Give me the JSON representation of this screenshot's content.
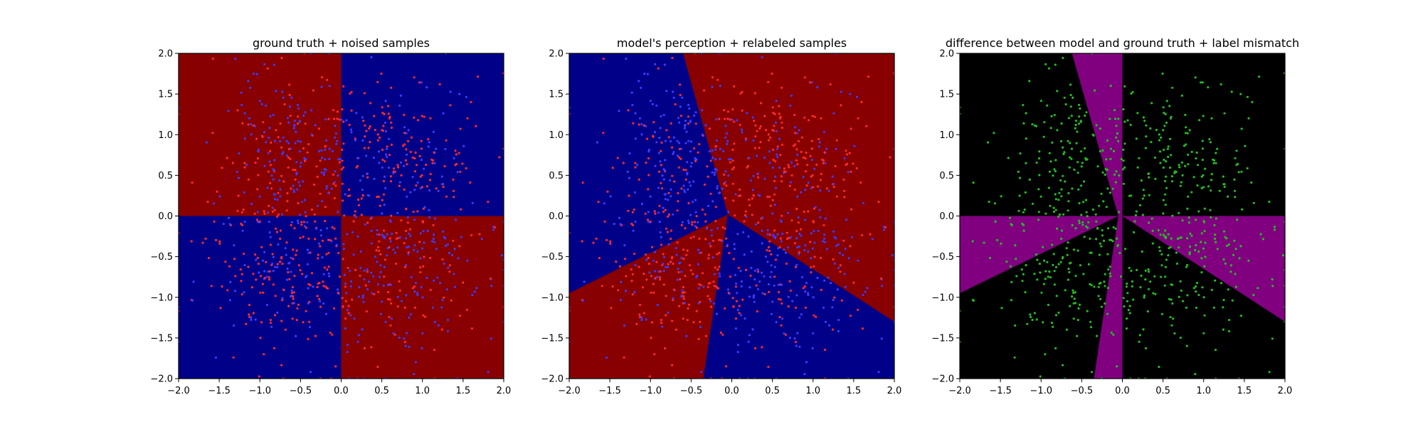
{
  "chart_data": [
    {
      "type": "scatter",
      "title": "ground truth + noised samples",
      "xlabel": "",
      "ylabel": "",
      "xlim": [
        -2.0,
        2.0
      ],
      "ylim": [
        -2.0,
        2.0
      ],
      "xticks": [
        "−2.0",
        "−1.5",
        "−1.0",
        "−0.5",
        "0.0",
        "0.5",
        "1.0",
        "1.5",
        "2.0"
      ],
      "yticks": [
        "−2.0",
        "−1.5",
        "−1.0",
        "−0.5",
        "0.0",
        "0.5",
        "1.0",
        "1.5",
        "2.0"
      ],
      "background": "ground-truth-quadrants",
      "region_colors": {
        "class_a": "#880000",
        "class_b": "#000088"
      },
      "point_colors": [
        "#ff2a2a",
        "#3b3bff"
      ],
      "point_count": 1000,
      "grid": false
    },
    {
      "type": "scatter",
      "title": "model's perception + relabeled samples",
      "xlabel": "",
      "ylabel": "",
      "xlim": [
        -2.0,
        2.0
      ],
      "ylim": [
        -2.0,
        2.0
      ],
      "xticks": [
        "−2.0",
        "−1.5",
        "−1.0",
        "−0.5",
        "0.0",
        "0.5",
        "1.0",
        "1.5",
        "2.0"
      ],
      "yticks": [
        "−2.0",
        "−1.5",
        "−1.0",
        "−0.5",
        "0.0",
        "0.5",
        "1.0",
        "1.5",
        "2.0"
      ],
      "background": "model-decision-regions",
      "region_colors": {
        "class_a": "#880000",
        "class_b": "#000088"
      },
      "point_colors": [
        "#ff2a2a",
        "#3b3bff"
      ],
      "point_count": 1000,
      "grid": false
    },
    {
      "type": "scatter",
      "title": "difference between model and ground truth + label mismatch",
      "xlabel": "",
      "ylabel": "",
      "xlim": [
        -2.0,
        2.0
      ],
      "ylim": [
        -2.0,
        2.0
      ],
      "xticks": [
        "−2.0",
        "−1.5",
        "−1.0",
        "−0.5",
        "0.0",
        "0.5",
        "1.0",
        "1.5",
        "2.0"
      ],
      "yticks": [
        "−2.0",
        "−1.5",
        "−1.0",
        "−0.5",
        "0.0",
        "0.5",
        "1.0",
        "1.5",
        "2.0"
      ],
      "background": "difference-map",
      "region_colors": {
        "agree": "#000000",
        "disagree": "#800080"
      },
      "point_colors": [
        "#22bb22"
      ],
      "point_count": 700,
      "grid": false
    }
  ]
}
